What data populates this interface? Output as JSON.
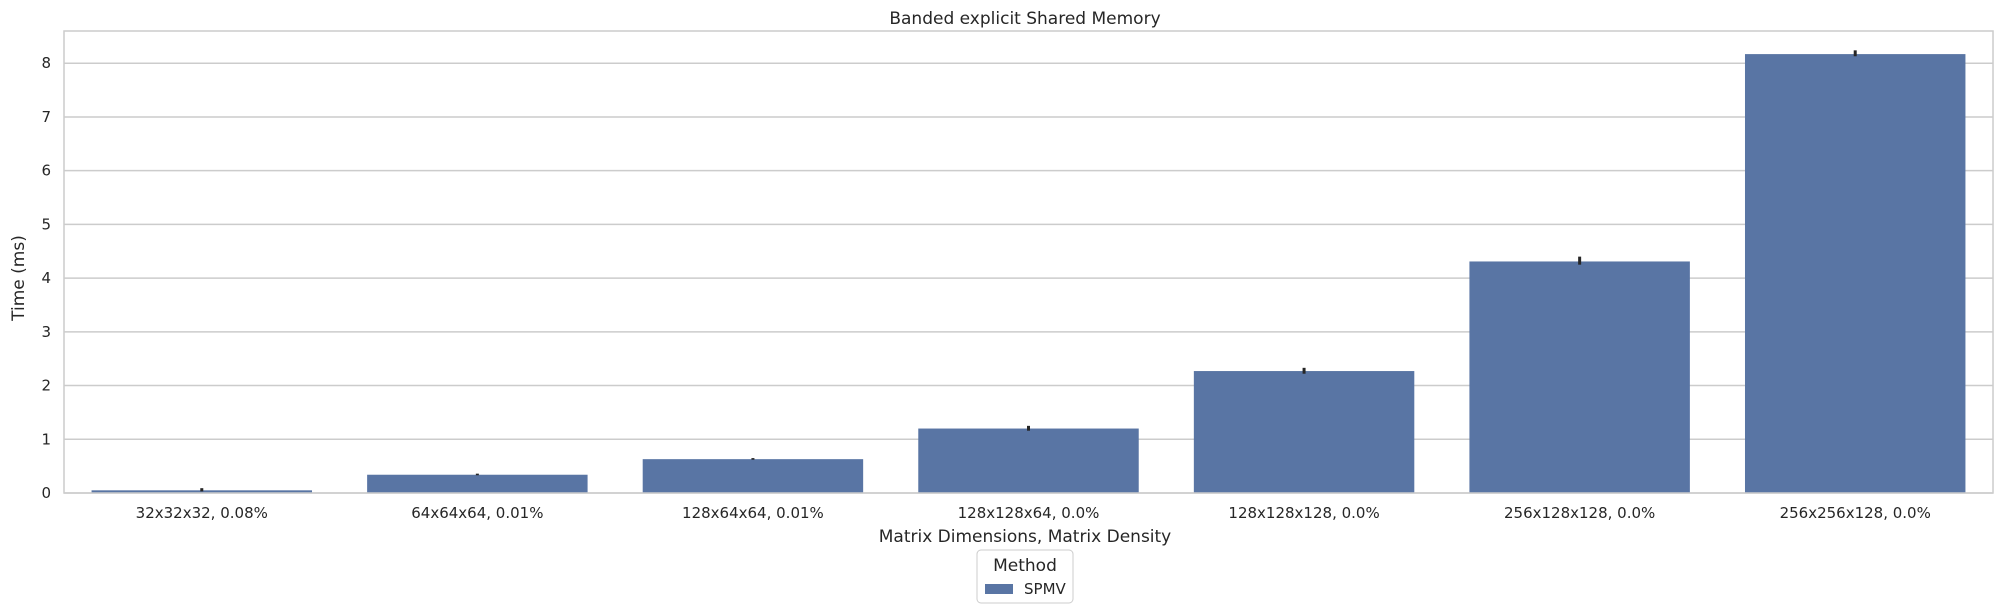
{
  "chart_data": {
    "type": "bar",
    "title": "Banded explicit Shared Memory",
    "xlabel": "Matrix Dimensions, Matrix Density",
    "ylabel": "Time (ms)",
    "categories": [
      "32x32x32, 0.08%",
      "64x64x64, 0.01%",
      "128x64x64, 0.01%",
      "128x128x64, 0.0%",
      "128x128x128, 0.0%",
      "256x128x128, 0.0%",
      "256x256x128, 0.0%"
    ],
    "series": [
      {
        "name": "SPMV",
        "values": [
          0.05,
          0.34,
          0.63,
          1.2,
          2.27,
          4.31,
          8.17
        ],
        "error_low": [
          0.03,
          0.33,
          0.62,
          1.16,
          2.22,
          4.25,
          8.13
        ],
        "error_high": [
          0.09,
          0.36,
          0.65,
          1.25,
          2.33,
          4.4,
          8.24
        ]
      }
    ],
    "ylim": [
      0,
      8.6
    ],
    "yticks": [
      0,
      1,
      2,
      3,
      4,
      5,
      6,
      7,
      8
    ],
    "grid": "horizontal",
    "legend": {
      "title": "Method",
      "position": "bottom-center"
    },
    "colors": {
      "bar": "#5975a4",
      "grid": "#cccccc",
      "frame": "#cccccc",
      "error": "#262626"
    }
  }
}
